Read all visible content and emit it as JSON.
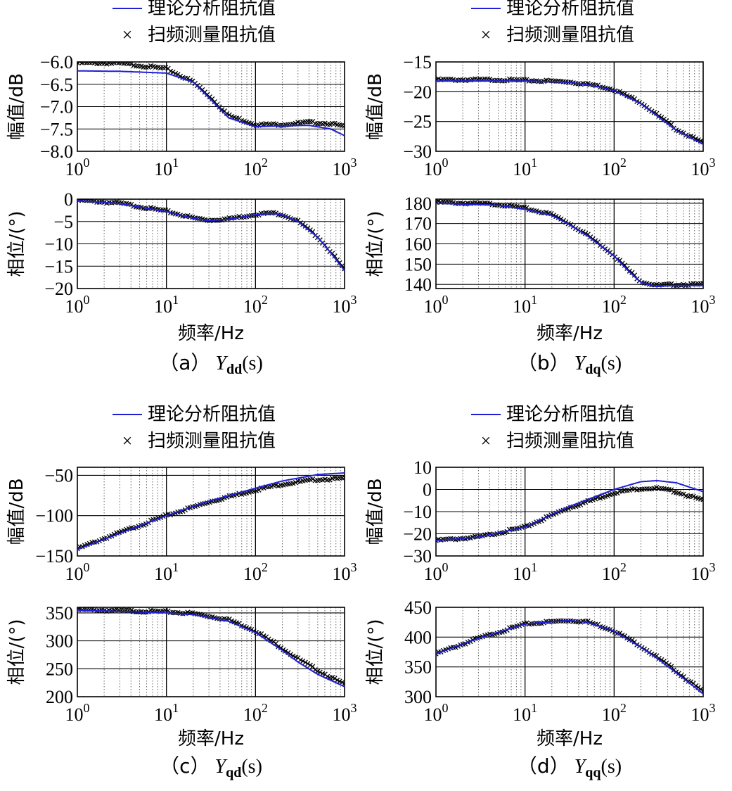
{
  "legend": {
    "theory_label": "理论分析阻抗值",
    "measured_label": "扫频测量阻抗值",
    "theory_color": "#1f1fd6",
    "measured_color": "#000000",
    "measured_marker": "×"
  },
  "xlabel": "频率/Hz",
  "ylabel_mag": "幅值/dB",
  "ylabel_phase": "相位/(°)",
  "x_ticks": [
    "10^0",
    "10^1",
    "10^2",
    "10^3"
  ],
  "panels": [
    {
      "caption_prefix": "（a）",
      "caption_main": "Y",
      "caption_sub": "dd",
      "caption_suffix": "(s)",
      "magnitude": {
        "type": "line",
        "xscale": "log",
        "xlim": [
          1,
          1000
        ],
        "ylim": [
          -8.0,
          -6.0
        ],
        "yticks": [
          -6.0,
          -6.5,
          -7.0,
          -7.5,
          -8.0
        ],
        "ytick_labels": [
          "−6.0",
          "−6.5",
          "−7.0",
          "−7.5",
          "−8.0"
        ],
        "theory": [
          [
            1,
            -6.2
          ],
          [
            3,
            -6.21
          ],
          [
            10,
            -6.25
          ],
          [
            20,
            -6.45
          ],
          [
            30,
            -6.8
          ],
          [
            50,
            -7.25
          ],
          [
            100,
            -7.45
          ],
          [
            200,
            -7.43
          ],
          [
            400,
            -7.42
          ],
          [
            700,
            -7.5
          ],
          [
            1000,
            -7.65
          ]
        ],
        "measured": [
          [
            1,
            -6.02
          ],
          [
            3,
            -6.03
          ],
          [
            10,
            -6.15
          ],
          [
            20,
            -6.45
          ],
          [
            30,
            -6.75
          ],
          [
            50,
            -7.2
          ],
          [
            100,
            -7.4
          ],
          [
            200,
            -7.4
          ],
          [
            400,
            -7.35
          ],
          [
            700,
            -7.38
          ],
          [
            1000,
            -7.45
          ]
        ]
      },
      "phase": {
        "type": "line",
        "xscale": "log",
        "xlim": [
          1,
          1000
        ],
        "ylim": [
          -20,
          0
        ],
        "yticks": [
          0,
          -5,
          -10,
          -15,
          -20
        ],
        "ytick_labels": [
          "0",
          "−5",
          "−10",
          "−15",
          "−20"
        ],
        "theory": [
          [
            1,
            -0.3
          ],
          [
            3,
            -1
          ],
          [
            10,
            -2.8
          ],
          [
            20,
            -4.3
          ],
          [
            30,
            -4.8
          ],
          [
            50,
            -4.5
          ],
          [
            100,
            -3.5
          ],
          [
            150,
            -3.2
          ],
          [
            200,
            -3.5
          ],
          [
            300,
            -5
          ],
          [
            500,
            -8.5
          ],
          [
            700,
            -12
          ],
          [
            1000,
            -16
          ]
        ],
        "measured": [
          [
            1,
            -0.2
          ],
          [
            3,
            -0.9
          ],
          [
            10,
            -2.7
          ],
          [
            20,
            -4.2
          ],
          [
            30,
            -4.7
          ],
          [
            50,
            -4.4
          ],
          [
            100,
            -3.4
          ],
          [
            150,
            -3.1
          ],
          [
            200,
            -3.4
          ],
          [
            300,
            -4.9
          ],
          [
            500,
            -8.4
          ],
          [
            700,
            -11.8
          ],
          [
            1000,
            -15.8
          ]
        ]
      }
    },
    {
      "caption_prefix": "（b）",
      "caption_main": "Y",
      "caption_sub": "dq",
      "caption_suffix": "(s)",
      "magnitude": {
        "type": "line",
        "xscale": "log",
        "xlim": [
          1,
          1000
        ],
        "ylim": [
          -30,
          -15
        ],
        "yticks": [
          -15,
          -20,
          -25,
          -30
        ],
        "ytick_labels": [
          "−15",
          "−20",
          "−25",
          "−30"
        ],
        "theory": [
          [
            1,
            -18.2
          ],
          [
            5,
            -18.2
          ],
          [
            10,
            -18.2
          ],
          [
            30,
            -18.4
          ],
          [
            60,
            -19
          ],
          [
            100,
            -19.8
          ],
          [
            200,
            -22
          ],
          [
            300,
            -24
          ],
          [
            500,
            -26.5
          ],
          [
            1000,
            -28.8
          ]
        ],
        "measured": [
          [
            1,
            -18
          ],
          [
            5,
            -18
          ],
          [
            10,
            -18.1
          ],
          [
            30,
            -18.3
          ],
          [
            60,
            -18.9
          ],
          [
            100,
            -19.6
          ],
          [
            200,
            -21.8
          ],
          [
            300,
            -23.8
          ],
          [
            500,
            -26.3
          ],
          [
            1000,
            -28.6
          ]
        ]
      },
      "phase": {
        "type": "line",
        "xscale": "log",
        "xlim": [
          1,
          1000
        ],
        "ylim": [
          138,
          182
        ],
        "yticks": [
          180,
          170,
          160,
          150,
          140
        ],
        "ytick_labels": [
          "180",
          "170",
          "160",
          "150",
          "140"
        ],
        "theory": [
          [
            1,
            180
          ],
          [
            5,
            179
          ],
          [
            10,
            177
          ],
          [
            20,
            174
          ],
          [
            30,
            170
          ],
          [
            50,
            164
          ],
          [
            100,
            154
          ],
          [
            150,
            146
          ],
          [
            200,
            141
          ],
          [
            300,
            139
          ],
          [
            500,
            139.5
          ],
          [
            1000,
            139.5
          ]
        ],
        "measured": [
          [
            1,
            180.5
          ],
          [
            5,
            179.5
          ],
          [
            10,
            177.5
          ],
          [
            20,
            174.5
          ],
          [
            30,
            170.5
          ],
          [
            50,
            164.5
          ],
          [
            100,
            154.5
          ],
          [
            150,
            146.5
          ],
          [
            200,
            141.5
          ],
          [
            300,
            139.5
          ],
          [
            500,
            140
          ],
          [
            1000,
            140
          ]
        ]
      }
    },
    {
      "caption_prefix": "（c）",
      "caption_main": "Y",
      "caption_sub": "qd",
      "caption_suffix": "(s)",
      "magnitude": {
        "type": "line",
        "xscale": "log",
        "xlim": [
          1,
          1000
        ],
        "ylim": [
          -150,
          -40
        ],
        "yticks": [
          -50,
          -100,
          -150
        ],
        "ytick_labels": [
          "−50",
          "−100",
          "−150"
        ],
        "theory": [
          [
            1,
            -142
          ],
          [
            3,
            -122
          ],
          [
            10,
            -100
          ],
          [
            30,
            -82
          ],
          [
            100,
            -66
          ],
          [
            200,
            -57
          ],
          [
            500,
            -49
          ],
          [
            1000,
            -47
          ]
        ],
        "measured": [
          [
            1,
            -141
          ],
          [
            3,
            -121
          ],
          [
            10,
            -100
          ],
          [
            30,
            -83
          ],
          [
            100,
            -68
          ],
          [
            200,
            -61
          ],
          [
            500,
            -55
          ],
          [
            1000,
            -54
          ]
        ]
      },
      "phase": {
        "type": "line",
        "xscale": "log",
        "xlim": [
          1,
          1000
        ],
        "ylim": [
          200,
          360
        ],
        "yticks": [
          350,
          300,
          250,
          200
        ],
        "ytick_labels": [
          "350",
          "300",
          "250",
          "200"
        ],
        "theory": [
          [
            1,
            355
          ],
          [
            10,
            350
          ],
          [
            20,
            347
          ],
          [
            50,
            335
          ],
          [
            100,
            315
          ],
          [
            200,
            283
          ],
          [
            300,
            262
          ],
          [
            500,
            240
          ],
          [
            1000,
            218
          ]
        ],
        "measured": [
          [
            1,
            356
          ],
          [
            10,
            352
          ],
          [
            20,
            349
          ],
          [
            50,
            338
          ],
          [
            100,
            318
          ],
          [
            200,
            287
          ],
          [
            300,
            268
          ],
          [
            500,
            247
          ],
          [
            1000,
            222
          ]
        ]
      }
    },
    {
      "caption_prefix": "（d）",
      "caption_main": "Y",
      "caption_sub": "qq",
      "caption_suffix": "(s)",
      "magnitude": {
        "type": "line",
        "xscale": "log",
        "xlim": [
          1,
          1000
        ],
        "ylim": [
          -30,
          10
        ],
        "yticks": [
          10,
          0,
          -10,
          -20,
          -30
        ],
        "ytick_labels": [
          "10",
          "0",
          "−10",
          "−20",
          "−30"
        ],
        "theory": [
          [
            1,
            -23
          ],
          [
            3,
            -21.5
          ],
          [
            10,
            -17
          ],
          [
            30,
            -8
          ],
          [
            100,
            0
          ],
          [
            200,
            3.5
          ],
          [
            300,
            4
          ],
          [
            500,
            3
          ],
          [
            1000,
            -1
          ]
        ],
        "measured": [
          [
            1,
            -23
          ],
          [
            3,
            -21.5
          ],
          [
            10,
            -17
          ],
          [
            30,
            -8.5
          ],
          [
            100,
            -1.5
          ],
          [
            200,
            0.5
          ],
          [
            300,
            0.5
          ],
          [
            500,
            -1
          ],
          [
            1000,
            -5
          ]
        ]
      },
      "phase": {
        "type": "line",
        "xscale": "log",
        "xlim": [
          1,
          1000
        ],
        "ylim": [
          300,
          450
        ],
        "yticks": [
          450,
          400,
          350,
          300
        ],
        "ytick_labels": [
          "450",
          "400",
          "350",
          "300"
        ],
        "theory": [
          [
            1,
            372
          ],
          [
            3,
            398
          ],
          [
            10,
            422
          ],
          [
            30,
            428
          ],
          [
            50,
            425
          ],
          [
            100,
            410
          ],
          [
            200,
            383
          ],
          [
            300,
            365
          ],
          [
            500,
            340
          ],
          [
            1000,
            305
          ]
        ],
        "measured": [
          [
            1,
            372
          ],
          [
            3,
            398
          ],
          [
            10,
            422
          ],
          [
            30,
            428
          ],
          [
            50,
            426
          ],
          [
            100,
            411
          ],
          [
            200,
            385
          ],
          [
            300,
            367
          ],
          [
            500,
            343
          ],
          [
            1000,
            308
          ]
        ]
      }
    }
  ]
}
